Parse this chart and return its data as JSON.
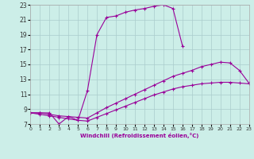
{
  "xlabel": "Windchill (Refroidissement éolien,°C)",
  "background_color": "#cceee8",
  "grid_color": "#aacccc",
  "line_color": "#990099",
  "xlim": [
    0,
    23
  ],
  "ylim": [
    7,
    23
  ],
  "xticks": [
    0,
    1,
    2,
    3,
    4,
    5,
    6,
    7,
    8,
    9,
    10,
    11,
    12,
    13,
    14,
    15,
    16,
    17,
    18,
    19,
    20,
    21,
    22,
    23
  ],
  "yticks": [
    7,
    9,
    11,
    13,
    15,
    17,
    19,
    21,
    23
  ],
  "curve1_x": [
    0,
    1,
    2,
    3,
    4,
    5,
    6,
    7,
    8,
    9,
    10,
    11,
    12,
    13,
    14,
    15,
    16
  ],
  "curve1_y": [
    8.5,
    8.5,
    8.5,
    7.0,
    8.0,
    7.5,
    11.5,
    19.0,
    21.3,
    21.5,
    22.0,
    22.3,
    22.5,
    22.8,
    23.0,
    22.5,
    17.5
  ],
  "curve2_x": [
    0,
    1,
    2,
    3,
    4,
    5,
    6,
    7,
    8,
    9,
    10,
    11,
    12,
    13,
    14,
    15,
    16,
    17,
    18,
    19,
    20,
    21,
    22,
    23
  ],
  "curve2_y": [
    8.5,
    8.5,
    8.3,
    8.1,
    8.0,
    7.9,
    7.8,
    8.5,
    9.2,
    9.8,
    10.4,
    11.0,
    11.6,
    12.2,
    12.8,
    13.4,
    13.8,
    14.2,
    14.7,
    15.0,
    15.3,
    15.2,
    14.2,
    12.5
  ],
  "curve3_x": [
    0,
    1,
    2,
    3,
    4,
    5,
    6,
    7,
    8,
    9,
    10,
    11,
    12,
    13,
    14,
    15,
    16,
    17,
    18,
    19,
    20,
    21,
    22,
    23
  ],
  "curve3_y": [
    8.5,
    8.3,
    8.1,
    7.9,
    7.7,
    7.5,
    7.4,
    7.9,
    8.4,
    8.9,
    9.4,
    9.9,
    10.4,
    10.9,
    11.3,
    11.7,
    12.0,
    12.2,
    12.4,
    12.5,
    12.6,
    12.6,
    12.5,
    12.4
  ]
}
